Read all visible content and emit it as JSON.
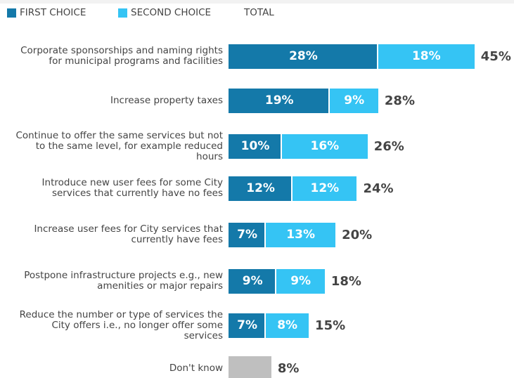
{
  "chart_data": {
    "type": "stacked-bar-horizontal",
    "categories": [
      "Corporate sponsorships and naming rights for municipal programs and facilities",
      "Increase property taxes",
      "Continue to offer the same services but not to the same level, for example reduced hours",
      "Introduce new user fees for some City services that currently have no fees",
      "Increase user fees for City services that currently have fees",
      "Postpone infrastructure projects e.g., new amenities or major repairs",
      "Reduce the number or type of services the City offers i.e., no longer offer some services",
      "Don't know"
    ],
    "series": [
      {
        "name": "FIRST CHOICE",
        "color": "#1479a9",
        "values": [
          28,
          19,
          10,
          12,
          7,
          9,
          7,
          null
        ],
        "value_labels": [
          "28%",
          "19%",
          "10%",
          "12%",
          "7%",
          "9%",
          "7%",
          null
        ]
      },
      {
        "name": "SECOND CHOICE",
        "color": "#35c4f4",
        "values": [
          18,
          9,
          16,
          12,
          13,
          9,
          8,
          null
        ],
        "value_labels": [
          "18%",
          "9%",
          "16%",
          "12%",
          "13%",
          "9%",
          "8%",
          null
        ]
      },
      {
        "name": "TOTAL",
        "color": "#bfbfbf",
        "values": [
          45,
          28,
          26,
          24,
          20,
          18,
          15,
          8
        ],
        "value_labels": [
          "45%",
          "28%",
          "26%",
          "24%",
          "20%",
          "18%",
          "15%",
          "8%"
        ]
      }
    ],
    "xlim": [
      0,
      53
    ]
  }
}
